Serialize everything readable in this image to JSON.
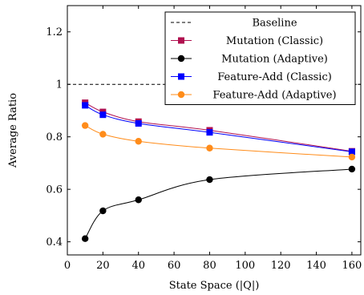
{
  "chart_data": {
    "type": "line",
    "xlabel": "State Space (|Q|)",
    "ylabel": "Average Ratio",
    "xlim": [
      0,
      165
    ],
    "ylim": [
      0.35,
      1.3
    ],
    "xticks": [
      0,
      20,
      40,
      60,
      80,
      100,
      120,
      140,
      160
    ],
    "yticks": [
      0.4,
      0.6,
      0.8,
      1,
      1.2
    ],
    "ytick_labels": [
      "0.4",
      "0.6",
      "0.8",
      "1",
      "1.2"
    ],
    "grid": false,
    "legend_position": "top-right",
    "baseline": {
      "name": "Baseline",
      "value": 1.0,
      "color": "#000000",
      "style": "dashed"
    },
    "series": [
      {
        "name": "Mutation (Classic)",
        "color": "#b0104f",
        "marker": "square",
        "x": [
          10,
          20,
          40,
          80,
          160
        ],
        "y": [
          0.93,
          0.895,
          0.858,
          0.825,
          0.745
        ]
      },
      {
        "name": "Mutation (Adaptive)",
        "color": "#000000",
        "marker": "circle",
        "x": [
          10,
          20,
          40,
          80,
          160
        ],
        "y": [
          0.412,
          0.518,
          0.56,
          0.637,
          0.677
        ]
      },
      {
        "name": "Feature-Add (Classic)",
        "color": "#0000ff",
        "marker": "square",
        "x": [
          10,
          20,
          40,
          80,
          160
        ],
        "y": [
          0.92,
          0.884,
          0.851,
          0.817,
          0.743
        ]
      },
      {
        "name": "Feature-Add (Adaptive)",
        "color": "#ff8c1a",
        "marker": "circle",
        "x": [
          10,
          20,
          40,
          80,
          160
        ],
        "y": [
          0.843,
          0.81,
          0.783,
          0.757,
          0.723
        ]
      }
    ]
  }
}
